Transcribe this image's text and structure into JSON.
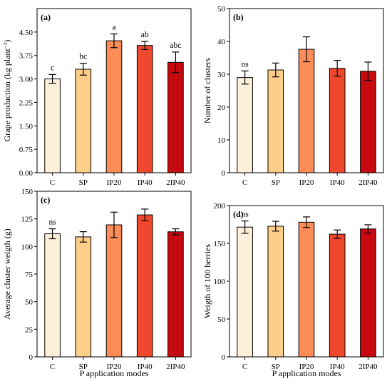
{
  "categories": [
    "C",
    "SP",
    "IP20",
    "IP40",
    "2IP40"
  ],
  "bar_colors": [
    "#fdf0da",
    "#fdcd8a",
    "#fc8d59",
    "#f0482d",
    "#c70a0f"
  ],
  "edge_color": "#000000",
  "x_axis_title": "P application modes",
  "chart_data": [
    {
      "type": "bar",
      "panel": "(a)",
      "ylabel": "Grape production (kg plant",
      "ylabel_sup": "−1",
      "ylabel_close": ")",
      "ylim": [
        0,
        5.25
      ],
      "yticks": [
        0,
        0.75,
        1.5,
        2.25,
        3.0,
        3.75,
        4.5
      ],
      "ytick_labels": [
        "0.00",
        "0.75",
        "1.50",
        "2.25",
        "3.00",
        "3.75",
        "4.50"
      ],
      "categories": [
        "C",
        "SP",
        "IP20",
        "IP40",
        "2IP40"
      ],
      "values": [
        3.0,
        3.31,
        4.22,
        4.07,
        3.53
      ],
      "errors": [
        0.14,
        0.19,
        0.22,
        0.13,
        0.33
      ],
      "labels": [
        "c",
        "bc",
        "a",
        "ab",
        "abc"
      ],
      "xlabel": ""
    },
    {
      "type": "bar",
      "panel": "(b)",
      "ylabel": "Number of clusters",
      "ylim": [
        0,
        50
      ],
      "yticks": [
        0,
        10,
        20,
        30,
        40,
        50
      ],
      "ytick_labels": [
        "0",
        "10",
        "20",
        "30",
        "40",
        "50"
      ],
      "categories": [
        "C",
        "SP",
        "IP20",
        "IP40",
        "2IP40"
      ],
      "values": [
        29.0,
        31.3,
        37.6,
        31.8,
        30.9
      ],
      "errors": [
        2.0,
        2.1,
        3.8,
        2.4,
        2.8
      ],
      "labels": [
        "ns"
      ],
      "xlabel": ""
    },
    {
      "type": "bar",
      "panel": "(c)",
      "ylabel": "Average cluster weigth (g)",
      "ylim": [
        0,
        150
      ],
      "yticks": [
        0,
        25,
        50,
        75,
        100,
        125,
        150
      ],
      "ytick_labels": [
        "0",
        "25",
        "50",
        "75",
        "100",
        "125",
        "150"
      ],
      "categories": [
        "C",
        "SP",
        "IP20",
        "IP40",
        "2IP40"
      ],
      "values": [
        111.5,
        108.7,
        119.6,
        128.6,
        113.3
      ],
      "errors": [
        4.5,
        4.7,
        11.5,
        5.3,
        2.7
      ],
      "labels": [
        "ns"
      ],
      "xlabel": "P application modes"
    },
    {
      "type": "bar",
      "panel": "(d)",
      "ylabel": "Weigth of 100 berries",
      "ylim": [
        0,
        200
      ],
      "yticks": [
        0,
        50,
        100,
        150,
        200
      ],
      "ytick_labels": [
        "0",
        "50",
        "100",
        "150",
        "200"
      ],
      "categories": [
        "C",
        "SP",
        "IP20",
        "IP40",
        "2IP40"
      ],
      "values": [
        171.5,
        172.7,
        178.0,
        162.2,
        169.1
      ],
      "errors": [
        8.2,
        6.5,
        7.0,
        5.5,
        5.5
      ],
      "labels": [
        "ns"
      ],
      "xlabel": "P application modes"
    }
  ]
}
